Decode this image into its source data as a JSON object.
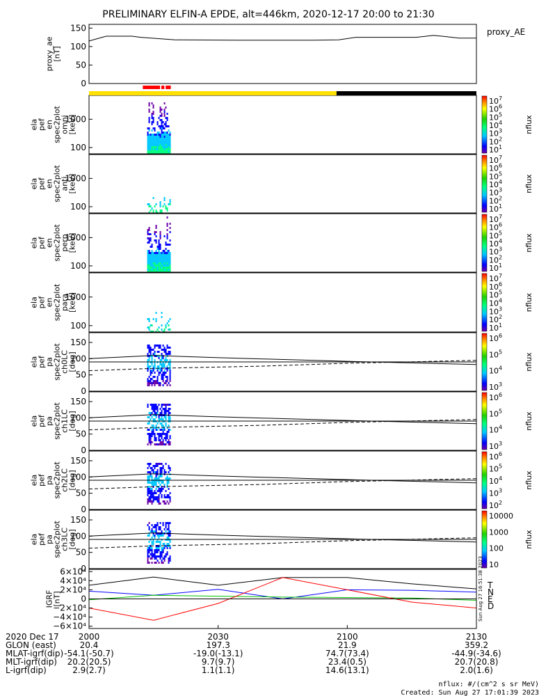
{
  "title": "PRELIMINARY ELFIN-A EPDE, alt=446km, 2020-12-17 20:00 to 21:30",
  "colors": {
    "sunlight_bar": "#ffe000",
    "shadow_bar": "#000000",
    "science_bar": "#ff0000"
  },
  "panels": [
    {
      "ylabel_lines": [
        "proxy_ae",
        "[nT]"
      ],
      "ticks": [
        "150",
        "100",
        "50",
        "0"
      ],
      "side_label": "proxy_AE"
    },
    {
      "ylabel_lines": [
        "ela",
        "pef",
        "en",
        "spec2plot",
        "omni",
        "[keV]"
      ],
      "ticks": [
        "1000",
        "100"
      ],
      "cb_label": "nflux",
      "cb_ticks": [
        "10",
        "10",
        "10",
        "10",
        "10",
        "10",
        "10"
      ],
      "cb_exps": [
        "7",
        "6",
        "5",
        "4",
        "3",
        "2",
        "1"
      ]
    },
    {
      "ylabel_lines": [
        "ela",
        "pef",
        "en",
        "spec2plot",
        "anti",
        "[keV]"
      ],
      "ticks": [
        "1000",
        "100"
      ],
      "cb_label": "nflux",
      "cb_ticks": [
        "10",
        "10",
        "10",
        "10",
        "10",
        "10",
        "10"
      ],
      "cb_exps": [
        "7",
        "6",
        "5",
        "4",
        "3",
        "2",
        "1"
      ]
    },
    {
      "ylabel_lines": [
        "ela",
        "pef",
        "en",
        "spec2plot",
        "perp",
        "[keV]"
      ],
      "ticks": [
        "1000",
        "100"
      ],
      "cb_label": "nflux",
      "cb_ticks": [
        "10",
        "10",
        "10",
        "10",
        "10",
        "10",
        "10"
      ],
      "cb_exps": [
        "7",
        "6",
        "5",
        "4",
        "3",
        "2",
        "1"
      ]
    },
    {
      "ylabel_lines": [
        "ela",
        "pef",
        "en",
        "spec2plot",
        "para",
        "[keV]"
      ],
      "ticks": [
        "1000",
        "100"
      ],
      "cb_label": "nflux",
      "cb_ticks": [
        "10",
        "10",
        "10",
        "10",
        "10",
        "10",
        "10"
      ],
      "cb_exps": [
        "7",
        "6",
        "5",
        "4",
        "3",
        "2",
        "1"
      ]
    },
    {
      "ylabel_lines": [
        "ela",
        "pef",
        "pa",
        "spec2plot",
        "ch0LC",
        "[deg]"
      ],
      "ticks": [
        "150",
        "100",
        "50",
        "0"
      ],
      "cb_label": "nflux",
      "cb_ticks": [
        "10",
        "10",
        "10",
        "10"
      ],
      "cb_exps": [
        "6",
        "5",
        "4",
        "3"
      ]
    },
    {
      "ylabel_lines": [
        "ela",
        "pef",
        "pa",
        "spec2plot",
        "ch1LC",
        "[deg]"
      ],
      "ticks": [
        "150",
        "100",
        "50",
        "0"
      ],
      "cb_label": "nflux",
      "cb_ticks": [
        "10",
        "10",
        "10",
        "10"
      ],
      "cb_exps": [
        "6",
        "5",
        "4",
        "3"
      ]
    },
    {
      "ylabel_lines": [
        "ela",
        "pef",
        "pa",
        "spec2plot",
        "ch2LC",
        "[deg]"
      ],
      "ticks": [
        "150",
        "100",
        "50",
        "0"
      ],
      "cb_label": "nflux",
      "cb_ticks": [
        "10",
        "10",
        "10",
        "10",
        "10"
      ],
      "cb_exps": [
        "6",
        "5",
        "4",
        "3",
        "2"
      ]
    },
    {
      "ylabel_lines": [
        "ela",
        "pef",
        "pa",
        "spec2plot",
        "ch3LC",
        "[deg]"
      ],
      "ticks": [
        "150",
        "100",
        "50",
        "0"
      ],
      "cb_label": "nflux",
      "cb_ticks": [
        "10000",
        "1000",
        "100",
        "10"
      ],
      "cb_exps": [
        "",
        "",
        "",
        ""
      ]
    },
    {
      "ylabel_lines": [
        "IGRF",
        "[nT]"
      ],
      "ticks": [
        "6×10⁴",
        "4×10⁴",
        "2×10⁴",
        "0",
        "−2×10⁴",
        "−4×10⁴",
        "−6×10⁴"
      ],
      "legend": [
        "T",
        "N",
        "E",
        "D"
      ],
      "legend_colors": [
        "#000000",
        "#0000ff",
        "#00c000",
        "#ff0000"
      ],
      "side_note": "Sun Aug 27 16:51:38 2023"
    }
  ],
  "footer": {
    "rows": [
      {
        "label": "2020 Dec 17",
        "values": [
          "2000",
          "2030",
          "2100",
          "2130"
        ]
      },
      {
        "label": "GLON (east)",
        "values": [
          "20.4",
          "197.3",
          "21.9",
          "359.2"
        ]
      },
      {
        "label": "MLAT-igrf(dip)",
        "values": [
          "-54.1(-50.7)",
          "-19.0(-13.1)",
          "74.7(73.4)",
          "-44.9(-34.6)"
        ]
      },
      {
        "label": "MLT-igrf(dip)",
        "values": [
          "20.2(20.5)",
          "9.7(9.7)",
          "23.4(0.5)",
          "20.7(20.8)"
        ]
      },
      {
        "label": "L-igrf(dip)",
        "values": [
          "2.9(2.7)",
          "1.1(1.1)",
          "14.6(13.1)",
          "2.0(1.6)"
        ]
      }
    ],
    "units_note": "nflux: #/(cm^2 s sr MeV)",
    "created": "Created: Sun Aug 27 17:01:39 2023"
  },
  "chart_data": {
    "type": "spectrogram-stack",
    "x_range_utc": [
      "2020-12-17 20:00",
      "2020-12-17 21:30"
    ],
    "x_ticks": [
      "2000",
      "2030",
      "2100",
      "2130"
    ],
    "proxy_ae": {
      "ylim": [
        0,
        160
      ],
      "x_min": [
        0,
        4,
        10,
        12,
        20,
        35,
        45,
        52,
        58,
        62,
        70,
        76,
        80,
        82,
        86,
        90
      ],
      "values": [
        115,
        128,
        128,
        125,
        118,
        117,
        117,
        117,
        118,
        125,
        125,
        125,
        130,
        128,
        123,
        123
      ]
    },
    "energy_ylim_keV": [
      60,
      7000
    ],
    "pa_ylim_deg": [
      0,
      180
    ],
    "active_interval_min": [
      13.5,
      19.0
    ],
    "loss_cone_solid": {
      "x_min": [
        0,
        15,
        30,
        60,
        90
      ],
      "values": [
        100,
        110,
        103,
        92,
        82
      ]
    },
    "loss_cone_dashed": {
      "x_min": [
        0,
        15,
        40,
        60,
        90
      ],
      "values": [
        63,
        70,
        77,
        86,
        95
      ]
    },
    "pa_reference": 90,
    "igrf": {
      "ylim": [
        -65000,
        65000
      ],
      "x_min": [
        0,
        15,
        30,
        45,
        60,
        75,
        90
      ],
      "T": [
        30000,
        48000,
        30000,
        47000,
        47000,
        33000,
        22000
      ],
      "N": [
        17000,
        8000,
        21000,
        0,
        20000,
        19000,
        15000
      ],
      "E": [
        -2000,
        8000,
        6000,
        4000,
        3000,
        2000,
        -3000
      ],
      "D": [
        -20000,
        -47000,
        -10000,
        47000,
        20000,
        -7000,
        -20000
      ]
    }
  }
}
